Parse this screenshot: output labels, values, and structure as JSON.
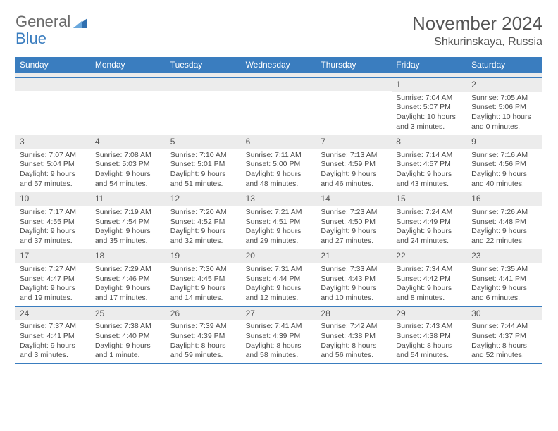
{
  "logo": {
    "text_general": "General",
    "text_blue": "Blue"
  },
  "header": {
    "month_title": "November 2024",
    "location": "Shkurinskaya, Russia"
  },
  "colors": {
    "header_bg": "#3a7dbf",
    "header_text": "#ffffff",
    "daynum_bg": "#ececec",
    "border": "#3a7dbf",
    "body_text": "#4a4a4a",
    "page_bg": "#ffffff"
  },
  "day_names": [
    "Sunday",
    "Monday",
    "Tuesday",
    "Wednesday",
    "Thursday",
    "Friday",
    "Saturday"
  ],
  "weeks": [
    [
      null,
      null,
      null,
      null,
      null,
      {
        "n": "1",
        "sunrise": "7:04 AM",
        "sunset": "5:07 PM",
        "daylight": "10 hours and 3 minutes."
      },
      {
        "n": "2",
        "sunrise": "7:05 AM",
        "sunset": "5:06 PM",
        "daylight": "10 hours and 0 minutes."
      }
    ],
    [
      {
        "n": "3",
        "sunrise": "7:07 AM",
        "sunset": "5:04 PM",
        "daylight": "9 hours and 57 minutes."
      },
      {
        "n": "4",
        "sunrise": "7:08 AM",
        "sunset": "5:03 PM",
        "daylight": "9 hours and 54 minutes."
      },
      {
        "n": "5",
        "sunrise": "7:10 AM",
        "sunset": "5:01 PM",
        "daylight": "9 hours and 51 minutes."
      },
      {
        "n": "6",
        "sunrise": "7:11 AM",
        "sunset": "5:00 PM",
        "daylight": "9 hours and 48 minutes."
      },
      {
        "n": "7",
        "sunrise": "7:13 AM",
        "sunset": "4:59 PM",
        "daylight": "9 hours and 46 minutes."
      },
      {
        "n": "8",
        "sunrise": "7:14 AM",
        "sunset": "4:57 PM",
        "daylight": "9 hours and 43 minutes."
      },
      {
        "n": "9",
        "sunrise": "7:16 AM",
        "sunset": "4:56 PM",
        "daylight": "9 hours and 40 minutes."
      }
    ],
    [
      {
        "n": "10",
        "sunrise": "7:17 AM",
        "sunset": "4:55 PM",
        "daylight": "9 hours and 37 minutes."
      },
      {
        "n": "11",
        "sunrise": "7:19 AM",
        "sunset": "4:54 PM",
        "daylight": "9 hours and 35 minutes."
      },
      {
        "n": "12",
        "sunrise": "7:20 AM",
        "sunset": "4:52 PM",
        "daylight": "9 hours and 32 minutes."
      },
      {
        "n": "13",
        "sunrise": "7:21 AM",
        "sunset": "4:51 PM",
        "daylight": "9 hours and 29 minutes."
      },
      {
        "n": "14",
        "sunrise": "7:23 AM",
        "sunset": "4:50 PM",
        "daylight": "9 hours and 27 minutes."
      },
      {
        "n": "15",
        "sunrise": "7:24 AM",
        "sunset": "4:49 PM",
        "daylight": "9 hours and 24 minutes."
      },
      {
        "n": "16",
        "sunrise": "7:26 AM",
        "sunset": "4:48 PM",
        "daylight": "9 hours and 22 minutes."
      }
    ],
    [
      {
        "n": "17",
        "sunrise": "7:27 AM",
        "sunset": "4:47 PM",
        "daylight": "9 hours and 19 minutes."
      },
      {
        "n": "18",
        "sunrise": "7:29 AM",
        "sunset": "4:46 PM",
        "daylight": "9 hours and 17 minutes."
      },
      {
        "n": "19",
        "sunrise": "7:30 AM",
        "sunset": "4:45 PM",
        "daylight": "9 hours and 14 minutes."
      },
      {
        "n": "20",
        "sunrise": "7:31 AM",
        "sunset": "4:44 PM",
        "daylight": "9 hours and 12 minutes."
      },
      {
        "n": "21",
        "sunrise": "7:33 AM",
        "sunset": "4:43 PM",
        "daylight": "9 hours and 10 minutes."
      },
      {
        "n": "22",
        "sunrise": "7:34 AM",
        "sunset": "4:42 PM",
        "daylight": "9 hours and 8 minutes."
      },
      {
        "n": "23",
        "sunrise": "7:35 AM",
        "sunset": "4:41 PM",
        "daylight": "9 hours and 6 minutes."
      }
    ],
    [
      {
        "n": "24",
        "sunrise": "7:37 AM",
        "sunset": "4:41 PM",
        "daylight": "9 hours and 3 minutes."
      },
      {
        "n": "25",
        "sunrise": "7:38 AM",
        "sunset": "4:40 PM",
        "daylight": "9 hours and 1 minute."
      },
      {
        "n": "26",
        "sunrise": "7:39 AM",
        "sunset": "4:39 PM",
        "daylight": "8 hours and 59 minutes."
      },
      {
        "n": "27",
        "sunrise": "7:41 AM",
        "sunset": "4:39 PM",
        "daylight": "8 hours and 58 minutes."
      },
      {
        "n": "28",
        "sunrise": "7:42 AM",
        "sunset": "4:38 PM",
        "daylight": "8 hours and 56 minutes."
      },
      {
        "n": "29",
        "sunrise": "7:43 AM",
        "sunset": "4:38 PM",
        "daylight": "8 hours and 54 minutes."
      },
      {
        "n": "30",
        "sunrise": "7:44 AM",
        "sunset": "4:37 PM",
        "daylight": "8 hours and 52 minutes."
      }
    ]
  ],
  "labels": {
    "sunrise_prefix": "Sunrise: ",
    "sunset_prefix": "Sunset: ",
    "daylight_prefix": "Daylight: "
  }
}
